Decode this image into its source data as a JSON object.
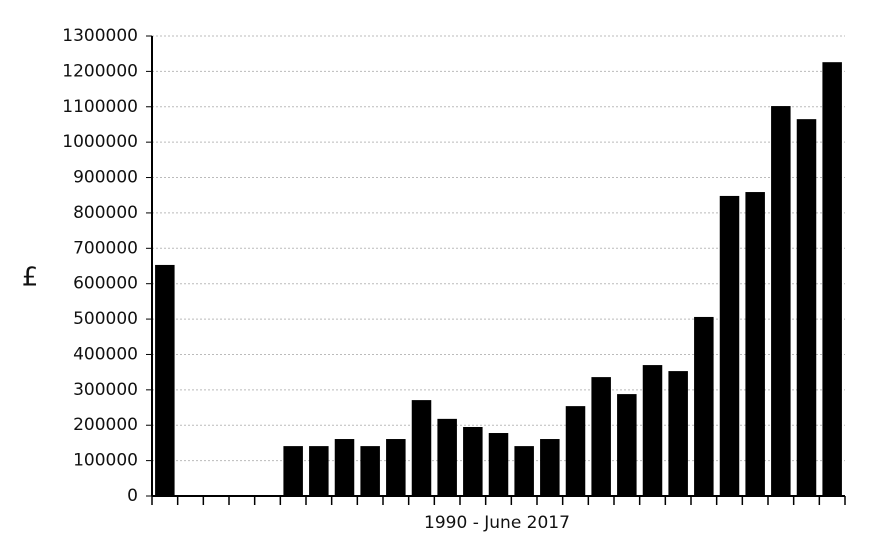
{
  "chart_data": {
    "type": "bar",
    "x_label": "1990 - June 2017",
    "y_label": "£",
    "categories": [
      null,
      null,
      null,
      null,
      null,
      null,
      null,
      null,
      null,
      null,
      null,
      null,
      null,
      null,
      null,
      null,
      null,
      null,
      null,
      null,
      null,
      null,
      null,
      null,
      null,
      null,
      null
    ],
    "values": [
      653000,
      2000,
      2000,
      2000,
      2000,
      141000,
      141000,
      161000,
      141000,
      161000,
      271000,
      218000,
      195000,
      178000,
      141000,
      161000,
      254000,
      336000,
      288000,
      370000,
      353000,
      506000,
      848000,
      859000,
      1102000,
      1065000,
      1226000
    ],
    "color": "#000000",
    "ylim": [
      0,
      1300000
    ],
    "yticks": [
      0,
      100000,
      200000,
      300000,
      400000,
      500000,
      600000,
      700000,
      800000,
      900000,
      1000000,
      1100000,
      1200000,
      1300000
    ],
    "grid": true
  }
}
